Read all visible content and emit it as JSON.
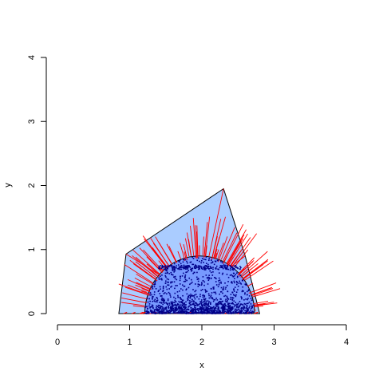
{
  "chart_data": {
    "type": "scatter",
    "title": "",
    "xlabel": "x",
    "ylabel": "y",
    "xlim": [
      0,
      4
    ],
    "ylim": [
      0,
      4
    ],
    "xticks": [
      "0",
      "1",
      "2",
      "3",
      "4"
    ],
    "yticks": [
      "0",
      "1",
      "2",
      "3",
      "4"
    ],
    "grid": false,
    "legend": "none",
    "outer_polygon": [
      [
        0.85,
        0.0
      ],
      [
        0.95,
        0.93
      ],
      [
        2.3,
        1.95
      ],
      [
        2.6,
        0.9
      ],
      [
        2.8,
        0.0
      ]
    ],
    "outer_hull_vertices": [
      {
        "x": 0.95,
        "y": 0.93
      },
      {
        "x": 2.3,
        "y": 1.95
      },
      {
        "x": 2.6,
        "y": 0.9
      },
      {
        "x": 2.75,
        "y": 0.05
      },
      {
        "x": 1.3,
        "y": 0.0
      }
    ],
    "inner_region": {
      "center_x": 1.97,
      "radius_x": 0.76,
      "radius_y": 0.9,
      "baseline_y": 0.0
    },
    "dense_band": {
      "x_from": 1.4,
      "x_to": 2.55,
      "y": 0.72
    },
    "colors": {
      "outer_fill": "#aaccff",
      "inner_fill": "#7799ff",
      "points": "#000088",
      "segments": "#ff0000",
      "axes": "#000000"
    }
  }
}
